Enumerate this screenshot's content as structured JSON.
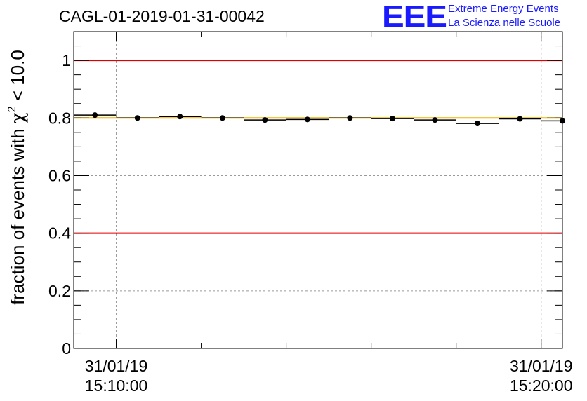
{
  "title": "CAGL-01-2019-01-31-00042",
  "logo": {
    "mark": "EEE",
    "line1": "Extreme Energy Events",
    "line2": "La Scienza nelle Scuole"
  },
  "chart_data": {
    "type": "scatter",
    "title": "CAGL-01-2019-01-31-00042",
    "ylabel_prefix": "fraction of events with ",
    "ylabel_symbol": "χ",
    "ylabel_sup": "2",
    "ylabel_suffix": " < 10.0",
    "xlabel": "",
    "xlim": [
      "2019-01-31 15:09:00",
      "2019-01-31 15:20:30"
    ],
    "ylim": [
      0,
      1.1
    ],
    "y_ticks": [
      0,
      0.2,
      0.4,
      0.6,
      0.8,
      1
    ],
    "y_tick_labels": [
      "0",
      "0.2",
      "0.4",
      "0.6",
      "0.8",
      "1"
    ],
    "x_tick_labels": [
      {
        "date": "31/01/19",
        "time": "15:10:00"
      },
      {
        "date": "31/01/19",
        "time": "15:20:00"
      }
    ],
    "grid": true,
    "reference_lines": [
      {
        "y": 1.0,
        "color": "#e00000"
      },
      {
        "y": 0.4,
        "color": "#e00000"
      },
      {
        "y": 0.8,
        "color": "#f0b400"
      }
    ],
    "points": [
      {
        "x": "2019-01-31 15:09:30",
        "y": 0.81
      },
      {
        "x": "2019-01-31 15:10:30",
        "y": 0.8
      },
      {
        "x": "2019-01-31 15:11:30",
        "y": 0.805
      },
      {
        "x": "2019-01-31 15:12:30",
        "y": 0.8
      },
      {
        "x": "2019-01-31 15:13:30",
        "y": 0.793
      },
      {
        "x": "2019-01-31 15:14:30",
        "y": 0.795
      },
      {
        "x": "2019-01-31 15:15:30",
        "y": 0.8
      },
      {
        "x": "2019-01-31 15:16:30",
        "y": 0.798
      },
      {
        "x": "2019-01-31 15:17:30",
        "y": 0.793
      },
      {
        "x": "2019-01-31 15:18:30",
        "y": 0.781
      },
      {
        "x": "2019-01-31 15:19:30",
        "y": 0.797
      },
      {
        "x": "2019-01-31 15:20:30",
        "y": 0.79
      }
    ],
    "colors": {
      "points": "#000000",
      "grid": "#9a9a9a",
      "axes": "#000000"
    }
  }
}
